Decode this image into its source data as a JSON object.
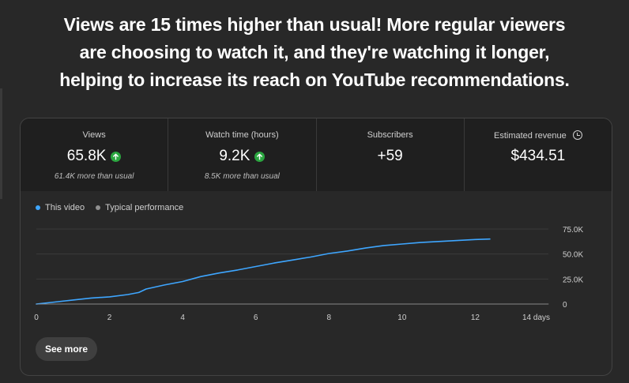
{
  "headline": {
    "line1": "Views are 15 times higher than usual! More regular viewers",
    "line2": "are choosing to watch it, and they're watching it longer,",
    "line3": "helping to increase its reach on YouTube recommendations."
  },
  "metrics": [
    {
      "label": "Views",
      "value": "65.8K",
      "sub": "61.4K more than usual",
      "up": true
    },
    {
      "label": "Watch time (hours)",
      "value": "9.2K",
      "sub": "8.5K more than usual",
      "up": true
    },
    {
      "label": "Subscribers",
      "value": "+59",
      "sub": "",
      "up": false
    },
    {
      "label": "Estimated revenue",
      "value": "$434.51",
      "sub": "",
      "up": false
    }
  ],
  "legend": {
    "this_video": "This video",
    "typical": "Typical performance"
  },
  "colors": {
    "this_video": "#3ea6ff",
    "typical": "#909090",
    "up_badge": "#2ba640"
  },
  "see_more_label": "See more",
  "chart_data": {
    "type": "line",
    "x_ticks": [
      "0",
      "2",
      "4",
      "6",
      "8",
      "10",
      "12",
      "14 days"
    ],
    "x_tick_values": [
      0,
      2,
      4,
      6,
      8,
      10,
      12,
      14
    ],
    "y_ticks": [
      "0",
      "25.0K",
      "50.0K",
      "75.0K"
    ],
    "y_tick_values": [
      0,
      25000,
      50000,
      75000
    ],
    "xlim": [
      0,
      14
    ],
    "ylim": [
      0,
      75000
    ],
    "series": [
      {
        "name": "This video",
        "x": [
          0,
          0.5,
          1,
          1.5,
          2,
          2.5,
          2.8,
          3,
          3.5,
          4,
          4.5,
          5,
          5.5,
          6,
          6.5,
          7,
          7.5,
          8,
          8.5,
          9,
          9.5,
          10,
          10.5,
          11,
          11.5,
          12,
          12.4
        ],
        "values": [
          0,
          2000,
          4000,
          6000,
          7200,
          9500,
          11500,
          15000,
          19000,
          22500,
          27500,
          31000,
          34000,
          37500,
          41000,
          44000,
          47000,
          50500,
          53000,
          56000,
          58500,
          60000,
          61500,
          62500,
          63500,
          64500,
          65000
        ]
      },
      {
        "name": "Typical performance",
        "x": [
          0,
          14
        ],
        "values": [
          0,
          0
        ]
      }
    ],
    "grid": true
  }
}
